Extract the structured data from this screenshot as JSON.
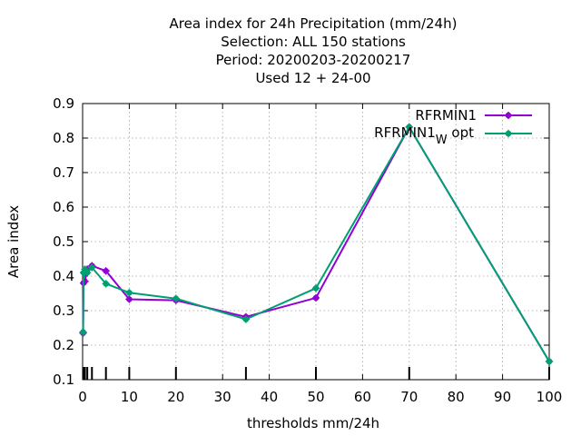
{
  "chart_data": {
    "type": "line",
    "title_lines": [
      "Area index  for 24h Precipitation (mm/24h)",
      "Selection: ALL    150 stations",
      "Period: 20200203-20200217",
      "Used  12 + 24-00"
    ],
    "xlabel": "thresholds mm/24h",
    "ylabel": "Area index",
    "xlim": [
      0,
      100
    ],
    "ylim": [
      0.1,
      0.9
    ],
    "xticks": [
      0,
      10,
      20,
      30,
      40,
      50,
      60,
      70,
      80,
      90,
      100
    ],
    "yticks": [
      0.1,
      0.2,
      0.3,
      0.4,
      0.5,
      0.6,
      0.7,
      0.8,
      0.9
    ],
    "grid": true,
    "legend_position": "top-right",
    "threshold_marks": [
      0.1,
      0.2,
      0.5,
      1,
      2,
      5,
      10,
      20,
      35,
      50,
      70,
      100
    ],
    "series": [
      {
        "name": "RFRMIN1",
        "color": "#9400d3",
        "x": [
          0.1,
          0.2,
          0.5,
          1,
          2,
          5,
          10,
          20,
          35,
          50,
          70,
          100
        ],
        "y": [
          0.235,
          0.38,
          0.385,
          0.42,
          0.43,
          0.415,
          0.333,
          0.33,
          0.282,
          0.337,
          0.832,
          0.153
        ]
      },
      {
        "name": "RFRMIN1",
        "name_subscript": "W",
        "name_suffix": "opt",
        "color": "#009e73",
        "x": [
          0.1,
          0.2,
          0.5,
          1,
          2,
          5,
          10,
          20,
          35,
          50,
          70,
          100
        ],
        "y": [
          0.238,
          0.41,
          0.42,
          0.41,
          0.425,
          0.378,
          0.352,
          0.335,
          0.275,
          0.365,
          0.832,
          0.153
        ]
      }
    ]
  }
}
